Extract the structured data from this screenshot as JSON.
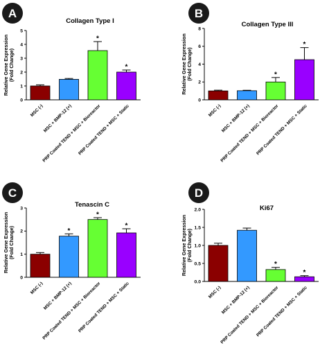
{
  "chart_data": [
    {
      "type": "bar",
      "panel_label": "A",
      "title": "Collagen Type I",
      "ylabel": [
        "Relative Gene Expression",
        "(Fold Change)"
      ],
      "ylim": [
        0,
        5
      ],
      "yticks": [
        "0",
        "1",
        "2",
        "3",
        "4",
        "5"
      ],
      "categories": [
        "MSC (-)",
        "MSC + BMP-12 (+)",
        "PRP Coated TEND + MSC + Bioreactor",
        "PRP Coated TEND + MSC + Static"
      ],
      "values": [
        1.0,
        1.48,
        3.55,
        2.0
      ],
      "errors": [
        0.08,
        0.06,
        0.65,
        0.15
      ],
      "significance": [
        "",
        "",
        "*",
        "*"
      ],
      "colors": [
        "#8b0000",
        "#3399ff",
        "#66ff33",
        "#9900ff"
      ]
    },
    {
      "type": "bar",
      "panel_label": "B",
      "title": "Collagen Type III",
      "ylabel": [
        "Relative Gene Expression",
        "(Fold Change)"
      ],
      "ylim": [
        0,
        8
      ],
      "yticks": [
        "0",
        "2",
        "4",
        "6",
        "8"
      ],
      "categories": [
        "MSC (-)",
        "MSC + BMP-12 (+)",
        "PRP Coated TEND + MSC + Bioreactor",
        "PRP Coated TEND + MSC + Static"
      ],
      "values": [
        1.0,
        1.02,
        2.0,
        4.5
      ],
      "errors": [
        0.08,
        0.05,
        0.5,
        1.35
      ],
      "significance": [
        "",
        "",
        "*",
        "*"
      ],
      "colors": [
        "#8b0000",
        "#3399ff",
        "#66ff33",
        "#9900ff"
      ]
    },
    {
      "type": "bar",
      "panel_label": "C",
      "title": "Tenascin C",
      "ylabel": [
        "Relative Gene Expression",
        "(Fold Change)"
      ],
      "ylim": [
        0,
        3
      ],
      "yticks": [
        "0",
        "1",
        "2",
        "3"
      ],
      "categories": [
        "MSC (-)",
        "MSC + BMP-12 (+)",
        "PRP Coated TEND + MSC + Bioreactor",
        "PRP Coated TEND + MSC + Static"
      ],
      "values": [
        1.0,
        1.78,
        2.5,
        1.92
      ],
      "errors": [
        0.07,
        0.1,
        0.08,
        0.18
      ],
      "significance": [
        "",
        "*",
        "*",
        "*"
      ],
      "colors": [
        "#8b0000",
        "#3399ff",
        "#66ff33",
        "#9900ff"
      ]
    },
    {
      "type": "bar",
      "panel_label": "D",
      "title": "Ki67",
      "ylabel": [
        "Relative Gene Expression",
        "(Fold Change)"
      ],
      "ylim": [
        0,
        2.0
      ],
      "yticks": [
        "0.0",
        "0.5",
        "1.0",
        "1.5",
        "2.0"
      ],
      "categories": [
        "MSC (-)",
        "MSC + BMP-12 (+)",
        "PRP Coated TEND + MSC + Bioreactor",
        "PRP Coated TEND + MSC + Static"
      ],
      "values": [
        1.0,
        1.42,
        0.33,
        0.13
      ],
      "errors": [
        0.06,
        0.06,
        0.06,
        0.03
      ],
      "significance": [
        "",
        "",
        "*",
        "*"
      ],
      "colors": [
        "#8b0000",
        "#3399ff",
        "#66ff33",
        "#9900ff"
      ]
    }
  ]
}
